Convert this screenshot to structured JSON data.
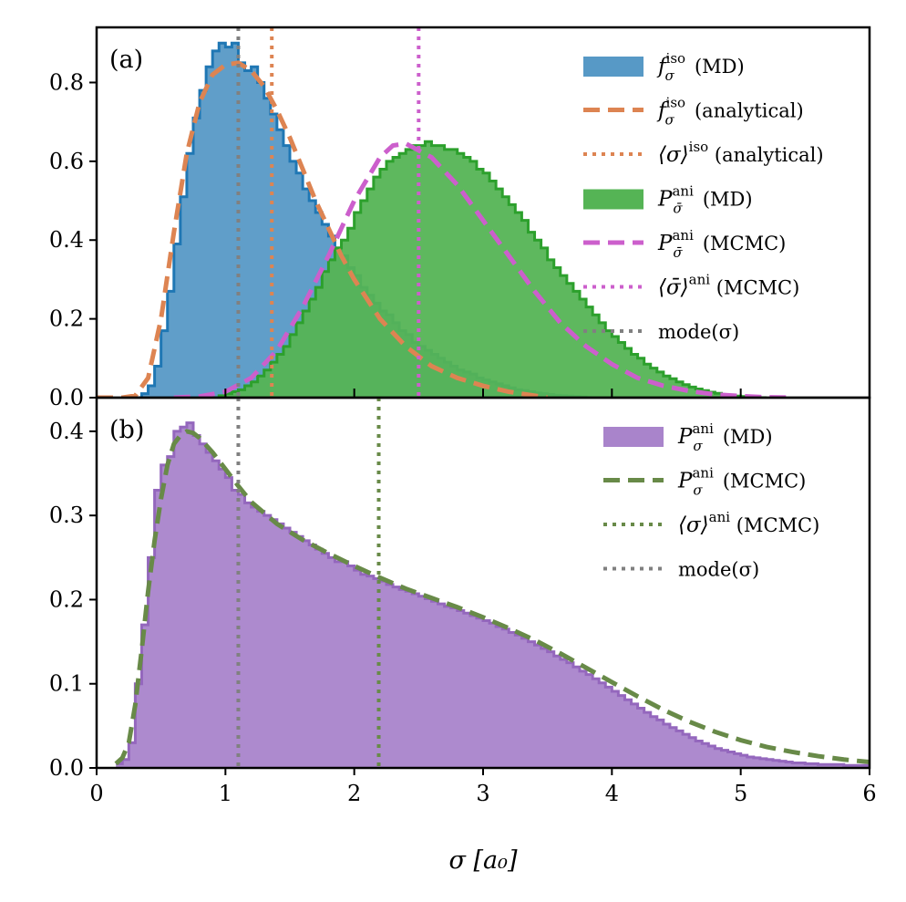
{
  "chart_data": [
    {
      "type": "histogram",
      "panel_label": "(a)",
      "xlim": [
        0,
        6
      ],
      "ylim": [
        0,
        0.94
      ],
      "yticks": [
        "0.0",
        "0.2",
        "0.4",
        "0.6",
        "0.8"
      ],
      "ytick_values": [
        0,
        0.2,
        0.4,
        0.6,
        0.8
      ],
      "series": [
        {
          "name": "f_iso_MD",
          "kind": "histogram",
          "color": "#5799c6",
          "edge": "#1f77b4",
          "x_start": 0.3,
          "bin_width": 0.05,
          "values": [
            0.0,
            0.01,
            0.03,
            0.08,
            0.17,
            0.27,
            0.39,
            0.51,
            0.62,
            0.71,
            0.78,
            0.84,
            0.88,
            0.9,
            0.89,
            0.9,
            0.85,
            0.83,
            0.84,
            0.8,
            0.76,
            0.72,
            0.68,
            0.64,
            0.6,
            0.57,
            0.53,
            0.5,
            0.47,
            0.44,
            0.41,
            0.38,
            0.36,
            0.33,
            0.31,
            0.28,
            0.26,
            0.24,
            0.22,
            0.21,
            0.19,
            0.17,
            0.16,
            0.14,
            0.13,
            0.12,
            0.11,
            0.1,
            0.09,
            0.08,
            0.07,
            0.065,
            0.06,
            0.05,
            0.045,
            0.04,
            0.035,
            0.03,
            0.025,
            0.02,
            0.018,
            0.015,
            0.012,
            0.01,
            0.008,
            0.006,
            0.005,
            0.004,
            0.003,
            0.002,
            0.0
          ]
        },
        {
          "name": "P_ani_MD_bar",
          "kind": "histogram",
          "color": "#55b455",
          "edge": "#2ca02c",
          "x_start": 0.9,
          "bin_width": 0.05,
          "values": [
            0.0,
            0.005,
            0.01,
            0.015,
            0.02,
            0.03,
            0.04,
            0.055,
            0.07,
            0.09,
            0.11,
            0.13,
            0.16,
            0.19,
            0.22,
            0.25,
            0.28,
            0.32,
            0.35,
            0.38,
            0.4,
            0.43,
            0.47,
            0.5,
            0.53,
            0.56,
            0.58,
            0.6,
            0.61,
            0.62,
            0.63,
            0.64,
            0.64,
            0.65,
            0.64,
            0.64,
            0.63,
            0.63,
            0.62,
            0.61,
            0.6,
            0.58,
            0.57,
            0.55,
            0.53,
            0.51,
            0.49,
            0.47,
            0.45,
            0.42,
            0.4,
            0.38,
            0.35,
            0.33,
            0.31,
            0.29,
            0.27,
            0.25,
            0.23,
            0.21,
            0.19,
            0.17,
            0.155,
            0.14,
            0.125,
            0.11,
            0.1,
            0.085,
            0.075,
            0.065,
            0.055,
            0.048,
            0.04,
            0.033,
            0.027,
            0.022,
            0.018,
            0.014,
            0.011,
            0.008,
            0.006,
            0.004,
            0.003,
            0.002,
            0.001,
            0.0
          ]
        },
        {
          "name": "f_iso_analytical",
          "kind": "line",
          "dash": "dashed",
          "color": "#dd8452",
          "x": [
            0.0,
            0.2,
            0.3,
            0.4,
            0.5,
            0.6,
            0.7,
            0.8,
            0.9,
            1.0,
            1.1,
            1.2,
            1.3,
            1.4,
            1.5,
            1.6,
            1.7,
            1.8,
            1.9,
            2.0,
            2.2,
            2.4,
            2.6,
            2.8,
            3.0,
            3.2,
            3.5
          ],
          "y": [
            0.0,
            0.0,
            0.005,
            0.05,
            0.2,
            0.42,
            0.62,
            0.75,
            0.82,
            0.845,
            0.85,
            0.83,
            0.79,
            0.73,
            0.66,
            0.58,
            0.5,
            0.43,
            0.36,
            0.3,
            0.2,
            0.13,
            0.08,
            0.05,
            0.03,
            0.015,
            0.0
          ]
        },
        {
          "name": "P_ani_MCMC_bar",
          "kind": "line",
          "dash": "dashed",
          "color": "#cc5fcc",
          "x": [
            0.6,
            0.8,
            1.0,
            1.2,
            1.4,
            1.6,
            1.8,
            2.0,
            2.2,
            2.3,
            2.4,
            2.6,
            2.8,
            3.0,
            3.2,
            3.4,
            3.6,
            3.8,
            4.0,
            4.2,
            4.4,
            4.6,
            4.8,
            5.0,
            5.2,
            5.4
          ],
          "y": [
            0.0,
            0.003,
            0.015,
            0.05,
            0.12,
            0.23,
            0.36,
            0.5,
            0.61,
            0.64,
            0.645,
            0.61,
            0.54,
            0.45,
            0.36,
            0.27,
            0.19,
            0.13,
            0.085,
            0.05,
            0.03,
            0.017,
            0.008,
            0.004,
            0.001,
            0.0
          ]
        }
      ],
      "vlines": [
        {
          "name": "sigma_iso_mean",
          "x": 1.36,
          "color": "#dd8452"
        },
        {
          "name": "sigma_bar_ani_mean",
          "x": 2.5,
          "color": "#cc5fcc"
        },
        {
          "name": "mode_sigma",
          "x": 1.1,
          "color": "#808080"
        }
      ],
      "legend": {
        "placement": "top-right",
        "entries": [
          {
            "kind": "patch",
            "color": "#5799c6",
            "sym": "f",
            "sup": "iso",
            "sub": "σ",
            "label": "(MD)"
          },
          {
            "kind": "dashed",
            "color": "#dd8452",
            "sym": "f",
            "sup": "iso",
            "sub": "σ",
            "label": "(analytical)"
          },
          {
            "kind": "dotted",
            "color": "#dd8452",
            "sym": "⟨σ⟩",
            "sup": "iso",
            "sub": "",
            "label": "(analytical)"
          },
          {
            "kind": "patch",
            "color": "#55b455",
            "sym": "P",
            "sup": "ani",
            "sub": "σ̄",
            "label": "(MD)"
          },
          {
            "kind": "dashed",
            "color": "#cc5fcc",
            "sym": "P",
            "sup": "ani",
            "sub": "σ̄",
            "label": "(MCMC)"
          },
          {
            "kind": "dotted",
            "color": "#cc5fcc",
            "sym": "⟨σ̄⟩",
            "sup": "ani",
            "sub": "",
            "label": "(MCMC)"
          },
          {
            "kind": "dotted",
            "color": "#808080",
            "sym": "",
            "sup": "",
            "sub": "",
            "label": "mode(σ)"
          }
        ]
      }
    },
    {
      "type": "histogram",
      "panel_label": "(b)",
      "xlim": [
        0,
        6
      ],
      "ylim": [
        0,
        0.44
      ],
      "yticks": [
        "0.0",
        "0.1",
        "0.2",
        "0.3",
        "0.4"
      ],
      "ytick_values": [
        0,
        0.1,
        0.2,
        0.3,
        0.4
      ],
      "xticks": [
        "0",
        "1",
        "2",
        "3",
        "4",
        "5",
        "6"
      ],
      "xtick_values": [
        0,
        1,
        2,
        3,
        4,
        5,
        6
      ],
      "xlabel": "σ [a₀]",
      "series": [
        {
          "name": "P_ani_MD",
          "kind": "histogram",
          "color": "#a984cb",
          "edge": "#9467bd",
          "x_start": 0.15,
          "bin_width": 0.05,
          "values": [
            0.005,
            0.01,
            0.03,
            0.1,
            0.17,
            0.25,
            0.33,
            0.36,
            0.37,
            0.4,
            0.405,
            0.41,
            0.395,
            0.385,
            0.375,
            0.365,
            0.355,
            0.345,
            0.33,
            0.325,
            0.315,
            0.31,
            0.305,
            0.3,
            0.295,
            0.29,
            0.285,
            0.28,
            0.275,
            0.27,
            0.265,
            0.26,
            0.255,
            0.25,
            0.245,
            0.245,
            0.24,
            0.235,
            0.23,
            0.228,
            0.225,
            0.222,
            0.218,
            0.215,
            0.212,
            0.21,
            0.207,
            0.204,
            0.201,
            0.198,
            0.195,
            0.192,
            0.19,
            0.187,
            0.184,
            0.181,
            0.178,
            0.175,
            0.172,
            0.168,
            0.165,
            0.161,
            0.158,
            0.154,
            0.15,
            0.146,
            0.142,
            0.138,
            0.133,
            0.129,
            0.125,
            0.12,
            0.115,
            0.111,
            0.106,
            0.101,
            0.096,
            0.091,
            0.086,
            0.081,
            0.076,
            0.071,
            0.066,
            0.061,
            0.057,
            0.052,
            0.048,
            0.044,
            0.04,
            0.036,
            0.032,
            0.029,
            0.026,
            0.023,
            0.021,
            0.019,
            0.017,
            0.015,
            0.013,
            0.012,
            0.011,
            0.01,
            0.009,
            0.008,
            0.007,
            0.006,
            0.006,
            0.005,
            0.005,
            0.004,
            0.004,
            0.004,
            0.004,
            0.003,
            0.003,
            0.003,
            0.003,
            0.002
          ]
        },
        {
          "name": "P_ani_MCMC",
          "kind": "line",
          "dash": "dashed",
          "color": "#688a48",
          "x": [
            0.15,
            0.2,
            0.25,
            0.3,
            0.35,
            0.4,
            0.45,
            0.5,
            0.55,
            0.6,
            0.65,
            0.7,
            0.75,
            0.8,
            0.9,
            1.0,
            1.1,
            1.2,
            1.4,
            1.6,
            1.8,
            2.0,
            2.2,
            2.4,
            2.6,
            2.8,
            3.0,
            3.2,
            3.4,
            3.6,
            3.8,
            4.0,
            4.2,
            4.4,
            4.6,
            4.8,
            5.0,
            5.2,
            5.4,
            5.6,
            5.8,
            6.0
          ],
          "y": [
            0.005,
            0.012,
            0.03,
            0.075,
            0.14,
            0.21,
            0.27,
            0.32,
            0.36,
            0.385,
            0.395,
            0.4,
            0.398,
            0.392,
            0.375,
            0.355,
            0.335,
            0.316,
            0.29,
            0.271,
            0.255,
            0.24,
            0.226,
            0.213,
            0.202,
            0.191,
            0.179,
            0.166,
            0.152,
            0.136,
            0.119,
            0.102,
            0.085,
            0.069,
            0.055,
            0.043,
            0.033,
            0.025,
            0.019,
            0.014,
            0.01,
            0.007
          ]
        }
      ],
      "vlines": [
        {
          "name": "sigma_ani_mean",
          "x": 2.19,
          "color": "#688a48"
        },
        {
          "name": "mode_sigma",
          "x": 1.1,
          "color": "#808080"
        }
      ],
      "legend": {
        "placement": "top-right",
        "entries": [
          {
            "kind": "patch",
            "color": "#a984cb",
            "sym": "P",
            "sup": "ani",
            "sub": "σ",
            "label": "(MD)"
          },
          {
            "kind": "dashed",
            "color": "#688a48",
            "sym": "P",
            "sup": "ani",
            "sub": "σ",
            "label": "(MCMC)"
          },
          {
            "kind": "dotted",
            "color": "#688a48",
            "sym": "⟨σ⟩",
            "sup": "ani",
            "sub": "",
            "label": "(MCMC)"
          },
          {
            "kind": "dotted",
            "color": "#808080",
            "sym": "",
            "sup": "",
            "sub": "",
            "label": "mode(σ)"
          }
        ]
      }
    }
  ]
}
